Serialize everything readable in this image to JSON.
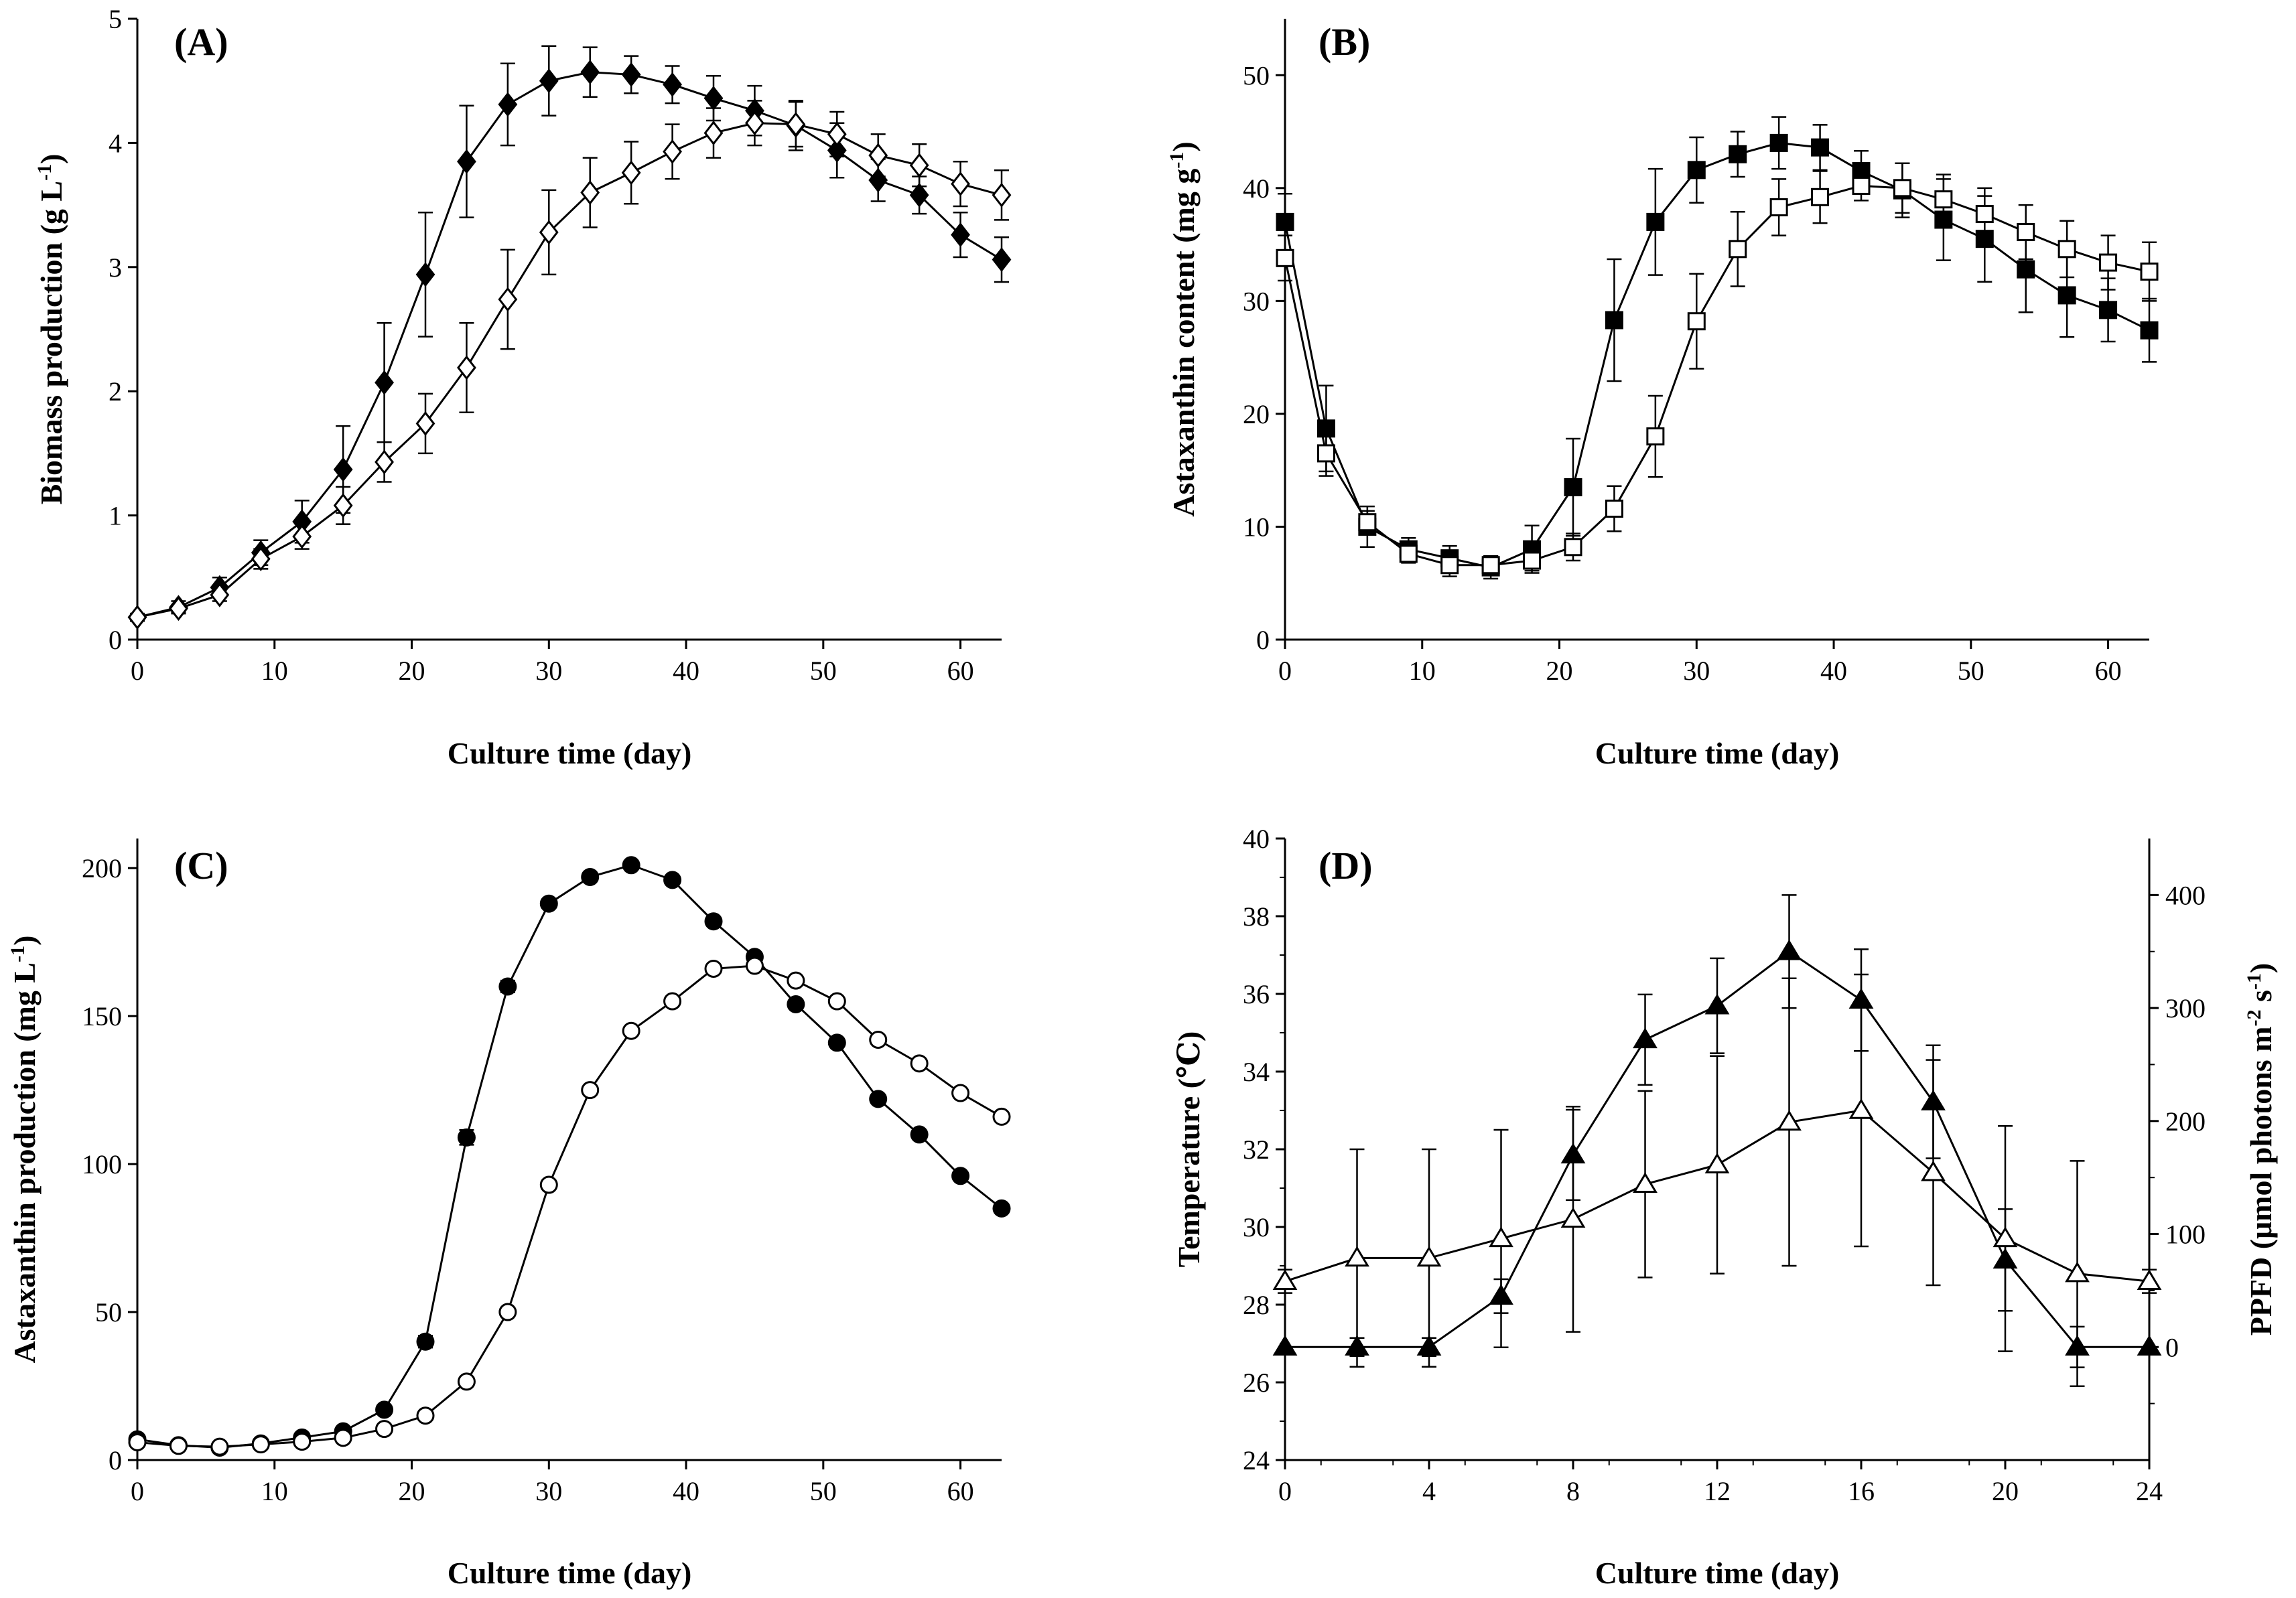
{
  "chart_data": [
    {
      "type": "line",
      "panel_label": "(A)",
      "xlabel": "Culture time (day)",
      "ylabel": "Biomass production (g L",
      "ylabel_sup": "-1",
      "ylabel_tail": ")",
      "xlim": [
        0,
        63
      ],
      "ylim": [
        0,
        5
      ],
      "xticks": [
        0,
        10,
        20,
        30,
        40,
        50,
        60
      ],
      "yticks": [
        0,
        1,
        2,
        3,
        4,
        5
      ],
      "ytick_labels": [
        "0",
        "1",
        "2",
        "3",
        "4",
        "5"
      ],
      "x": [
        0,
        3,
        6,
        9,
        12,
        15,
        18,
        21,
        24,
        27,
        30,
        33,
        36,
        39,
        42,
        45,
        48,
        51,
        54,
        57,
        60,
        63
      ],
      "series": [
        {
          "name": "filled diamond",
          "marker": "diamond",
          "fill": "filled",
          "values": [
            0.18,
            0.26,
            0.42,
            0.7,
            0.95,
            1.37,
            2.07,
            2.94,
            3.85,
            4.31,
            4.5,
            4.57,
            4.55,
            4.47,
            4.36,
            4.26,
            4.14,
            3.94,
            3.7,
            3.58,
            3.26,
            3.06
          ],
          "errors": [
            0.03,
            0.05,
            0.08,
            0.1,
            0.17,
            0.35,
            0.48,
            0.5,
            0.45,
            0.33,
            0.28,
            0.2,
            0.15,
            0.15,
            0.18,
            0.2,
            0.2,
            0.22,
            0.17,
            0.15,
            0.18,
            0.18
          ]
        },
        {
          "name": "open diamond",
          "marker": "diamond",
          "fill": "open",
          "values": [
            0.18,
            0.25,
            0.36,
            0.65,
            0.83,
            1.08,
            1.43,
            1.74,
            2.19,
            2.74,
            3.28,
            3.6,
            3.76,
            3.93,
            4.08,
            4.16,
            4.15,
            4.07,
            3.9,
            3.82,
            3.67,
            3.58
          ],
          "errors": [
            0.02,
            0.03,
            0.05,
            0.08,
            0.1,
            0.15,
            0.16,
            0.24,
            0.36,
            0.4,
            0.34,
            0.28,
            0.25,
            0.22,
            0.2,
            0.18,
            0.18,
            0.18,
            0.17,
            0.17,
            0.18,
            0.2
          ]
        }
      ]
    },
    {
      "type": "line",
      "panel_label": "(B)",
      "xlabel": "Culture time (day)",
      "ylabel": "Astaxanthin content (mg g",
      "ylabel_sup": "-1",
      "ylabel_tail": ")",
      "xlim": [
        0,
        63
      ],
      "ylim": [
        0,
        55
      ],
      "xticks": [
        0,
        10,
        20,
        30,
        40,
        50,
        60
      ],
      "yticks": [
        0,
        10,
        20,
        30,
        40,
        50
      ],
      "ytick_labels": [
        "0",
        "10",
        "20",
        "30",
        "40",
        "50"
      ],
      "x": [
        0,
        3,
        6,
        9,
        12,
        15,
        18,
        21,
        24,
        27,
        30,
        33,
        36,
        39,
        42,
        45,
        48,
        51,
        54,
        57,
        60,
        63
      ],
      "series": [
        {
          "name": "filled square",
          "marker": "square",
          "fill": "filled",
          "values": [
            37.0,
            18.7,
            10.0,
            8.0,
            7.2,
            6.4,
            8.0,
            13.5,
            28.3,
            37.0,
            41.6,
            43.0,
            44.0,
            43.6,
            41.5,
            39.8,
            37.2,
            35.5,
            32.8,
            30.5,
            29.2,
            27.4
          ],
          "errors": [
            2.5,
            3.8,
            1.8,
            1.0,
            1.1,
            1.0,
            2.1,
            4.3,
            5.4,
            4.7,
            2.9,
            2.0,
            2.3,
            2.0,
            1.8,
            2.4,
            3.6,
            3.8,
            3.8,
            3.7,
            2.8,
            2.8
          ]
        },
        {
          "name": "open square",
          "marker": "square",
          "fill": "open",
          "values": [
            33.8,
            16.5,
            10.4,
            7.6,
            6.6,
            6.6,
            7.0,
            8.2,
            11.6,
            18.0,
            28.2,
            34.6,
            38.3,
            39.2,
            40.2,
            40.0,
            39.0,
            37.7,
            36.1,
            34.6,
            33.4,
            32.6
          ],
          "errors": [
            2.0,
            2.0,
            1.0,
            0.8,
            1.0,
            0.8,
            0.9,
            1.2,
            2.0,
            3.6,
            4.2,
            3.3,
            2.5,
            2.3,
            1.3,
            2.2,
            2.2,
            2.3,
            2.4,
            2.5,
            2.4,
            2.6
          ]
        }
      ]
    },
    {
      "type": "line",
      "panel_label": "(C)",
      "xlabel": "Culture time (day)",
      "ylabel": "Astaxanthin production (mg L",
      "ylabel_sup": "-1",
      "ylabel_tail": ")",
      "xlim": [
        0,
        63
      ],
      "ylim": [
        0,
        210
      ],
      "xticks": [
        0,
        10,
        20,
        30,
        40,
        50,
        60
      ],
      "yticks": [
        0,
        50,
        100,
        150,
        200
      ],
      "ytick_labels": [
        "0",
        "50",
        "100",
        "150",
        "200"
      ],
      "x": [
        0,
        3,
        6,
        9,
        12,
        15,
        18,
        21,
        24,
        27,
        30,
        33,
        36,
        39,
        42,
        45,
        48,
        51,
        54,
        57,
        60,
        63
      ],
      "series": [
        {
          "name": "filled circle",
          "marker": "circle",
          "fill": "filled",
          "values": [
            7,
            5,
            4.2,
            5.6,
            7.6,
            9.7,
            17,
            40,
            109,
            160,
            188,
            197,
            201,
            196,
            182,
            170,
            154,
            141,
            122,
            110,
            96,
            85
          ],
          "errors": [
            0.5,
            0.5,
            0.5,
            0.5,
            0.8,
            1.0,
            1.2,
            2.0,
            2.5,
            2.0,
            1.5,
            1.2,
            1.0,
            1.2,
            1.2,
            1.2,
            1.2,
            1.2,
            1.2,
            1.2,
            1.2,
            1.2
          ]
        },
        {
          "name": "open circle",
          "marker": "circle",
          "fill": "open",
          "values": [
            6,
            4.8,
            4.5,
            5.3,
            6.2,
            7.5,
            10.5,
            15,
            26.5,
            50,
            93,
            125,
            145,
            155,
            166,
            167,
            162,
            155,
            142,
            134,
            124,
            116
          ],
          "errors": [
            0.5,
            0.5,
            0.5,
            0.5,
            0.5,
            0.8,
            0.8,
            1.0,
            1.2,
            1.5,
            1.5,
            1.5,
            1.5,
            1.2,
            1.2,
            1.2,
            1.2,
            1.2,
            1.2,
            1.2,
            1.2,
            1.2
          ]
        }
      ]
    },
    {
      "type": "line",
      "panel_label": "(D)",
      "xlabel": "Culture time (day)",
      "ylabel": "Temperature (℃)",
      "y2label": "PPFD (μmol photons m",
      "y2label_sup1": "-2",
      "y2label_mid": " s",
      "y2label_sup2": "-1",
      "y2label_tail": ")",
      "xlim": [
        0,
        24
      ],
      "ylim": [
        24,
        40
      ],
      "y2lim": [
        -100,
        450
      ],
      "xticks": [
        0,
        4,
        8,
        12,
        16,
        20,
        24
      ],
      "yticks": [
        24,
        26,
        28,
        30,
        32,
        34,
        36,
        38,
        40
      ],
      "ytick_labels": [
        "24",
        "26",
        "28",
        "30",
        "32",
        "34",
        "36",
        "38",
        "40"
      ],
      "y2ticks": [
        0,
        100,
        200,
        300,
        400
      ],
      "y2tick_labels": [
        "0",
        "100",
        "200",
        "300",
        "400"
      ],
      "y2minor": [
        -50,
        50,
        150,
        250,
        350
      ],
      "x": [
        0,
        2,
        4,
        6,
        8,
        10,
        12,
        14,
        16,
        18,
        20,
        22,
        24
      ],
      "series": [
        {
          "name": "filled triangle",
          "marker": "triangle",
          "fill": "filled",
          "axis": "y2",
          "values": [
            0,
            0,
            0,
            45,
            170,
            272,
            302,
            350,
            307,
            217,
            77,
            0,
            0
          ],
          "errors": [
            0,
            8,
            8,
            15,
            40,
            40,
            42,
            50,
            45,
            50,
            45,
            18,
            0
          ]
        },
        {
          "name": "open triangle",
          "marker": "triangle",
          "fill": "open",
          "axis": "y1",
          "values": [
            28.6,
            29.2,
            29.2,
            29.7,
            30.2,
            31.1,
            31.6,
            32.7,
            33.0,
            31.4,
            29.7,
            28.8,
            28.6
          ],
          "errors": [
            0.3,
            2.8,
            2.8,
            2.8,
            2.9,
            2.4,
            2.8,
            3.7,
            3.5,
            2.9,
            2.9,
            2.9,
            0.3
          ]
        }
      ]
    }
  ]
}
